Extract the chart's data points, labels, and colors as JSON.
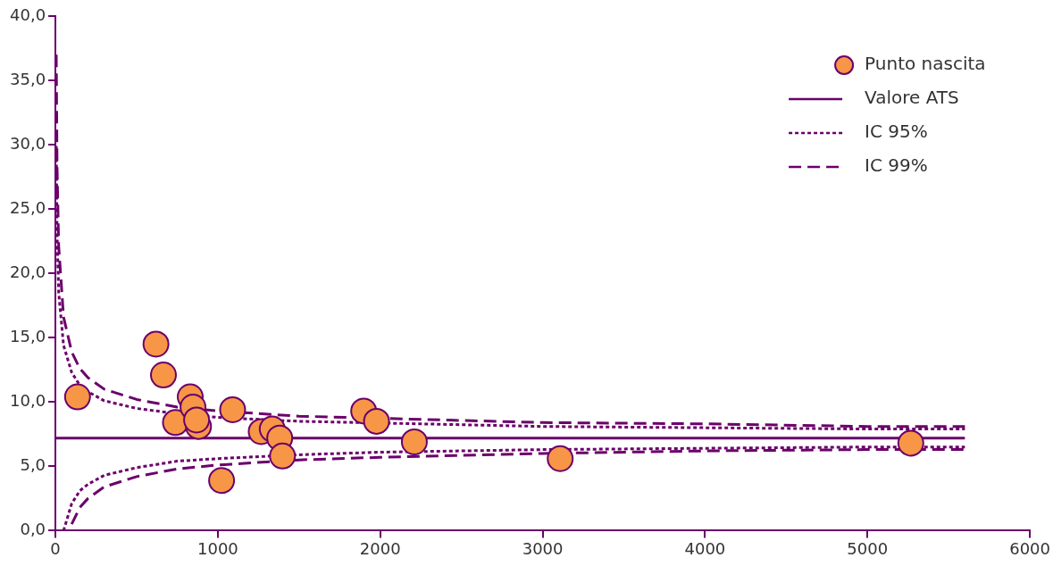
{
  "chart_data": {
    "type": "scatter",
    "legend": "top right",
    "grid": false,
    "xlim": [
      0,
      6000
    ],
    "xticks": [
      0,
      1000,
      2000,
      3000,
      4000,
      5000,
      6000
    ],
    "ylim": [
      0,
      40
    ],
    "yticks": [
      {
        "value": 0,
        "label": "0,0"
      },
      {
        "value": 5,
        "label": "5,0"
      },
      {
        "value": 10,
        "label": "10,0"
      },
      {
        "value": 15,
        "label": "15,0"
      },
      {
        "value": 20,
        "label": "20,0"
      },
      {
        "value": 25,
        "label": "25,0"
      },
      {
        "value": 30,
        "label": "30,0"
      },
      {
        "value": 35,
        "label": "35,0"
      },
      {
        "value": 40,
        "label": "40,0"
      }
    ],
    "series": [
      {
        "name": "Punto nascita",
        "color": "#f79646",
        "marker": "circle",
        "x": [
          136,
          619,
          665,
          830,
          739,
          847,
          881,
          869,
          1091,
          1023,
          1267,
          1335,
          1381,
          1398,
          1898,
          1977,
          2210,
          3108,
          5267
        ],
        "values": [
          10.4,
          14.5,
          12.1,
          10.4,
          8.4,
          9.6,
          8.1,
          8.6,
          9.4,
          3.9,
          7.7,
          7.9,
          7.2,
          5.8,
          9.3,
          8.5,
          6.9,
          5.6,
          6.8
        ]
      },
      {
        "type": "line",
        "name": "Valore ATS",
        "color": "#6b006b",
        "line_style": "solid",
        "marker": "none",
        "x": [
          0,
          5600
        ],
        "values": [
          7.2,
          7.2
        ]
      },
      {
        "type": "line",
        "name": "IC 95%",
        "color": "#6b006b",
        "line_style": "dotted",
        "marker": "none",
        "x": [
          5,
          10,
          20,
          50,
          100,
          150,
          200,
          300,
          500,
          750,
          1000,
          1500,
          3000,
          4000,
          5000,
          5600
        ],
        "values": [
          29.9,
          23.2,
          18.5,
          14.4,
          12.3,
          11.3,
          10.8,
          10.1,
          9.5,
          9.1,
          8.8,
          8.5,
          8.1,
          8.0,
          7.9,
          7.9
        ]
      },
      {
        "type": "line",
        "color": "#6b006b",
        "line_style": "dotted",
        "marker": "none",
        "x": [
          50,
          100,
          150,
          200,
          300,
          500,
          750,
          1000,
          1500,
          2000,
          3000,
          4000,
          5000,
          5600
        ],
        "values": [
          0.0,
          2.1,
          3.1,
          3.6,
          4.3,
          4.9,
          5.4,
          5.6,
          5.9,
          6.1,
          6.3,
          6.4,
          6.5,
          6.5
        ]
      },
      {
        "type": "line",
        "name": "IC 99%",
        "color": "#6b006b",
        "line_style": "dashed",
        "marker": "none",
        "x": [
          5,
          10,
          20,
          50,
          100,
          150,
          200,
          300,
          500,
          750,
          1000,
          1500,
          3000,
          4000,
          5000,
          5600
        ],
        "values": [
          37.0,
          28.3,
          22.1,
          16.6,
          13.9,
          12.6,
          11.9,
          11.0,
          10.2,
          9.6,
          9.3,
          8.9,
          8.4,
          8.3,
          8.1,
          8.1
        ]
      },
      {
        "type": "line",
        "color": "#6b006b",
        "line_style": "dashed",
        "marker": "none",
        "x": [
          100,
          150,
          200,
          300,
          500,
          750,
          1000,
          1500,
          2000,
          3000,
          4000,
          5000,
          5600
        ],
        "values": [
          0.5,
          1.8,
          2.5,
          3.4,
          4.2,
          4.8,
          5.1,
          5.5,
          5.7,
          6.0,
          6.2,
          6.3,
          6.3
        ]
      }
    ]
  }
}
